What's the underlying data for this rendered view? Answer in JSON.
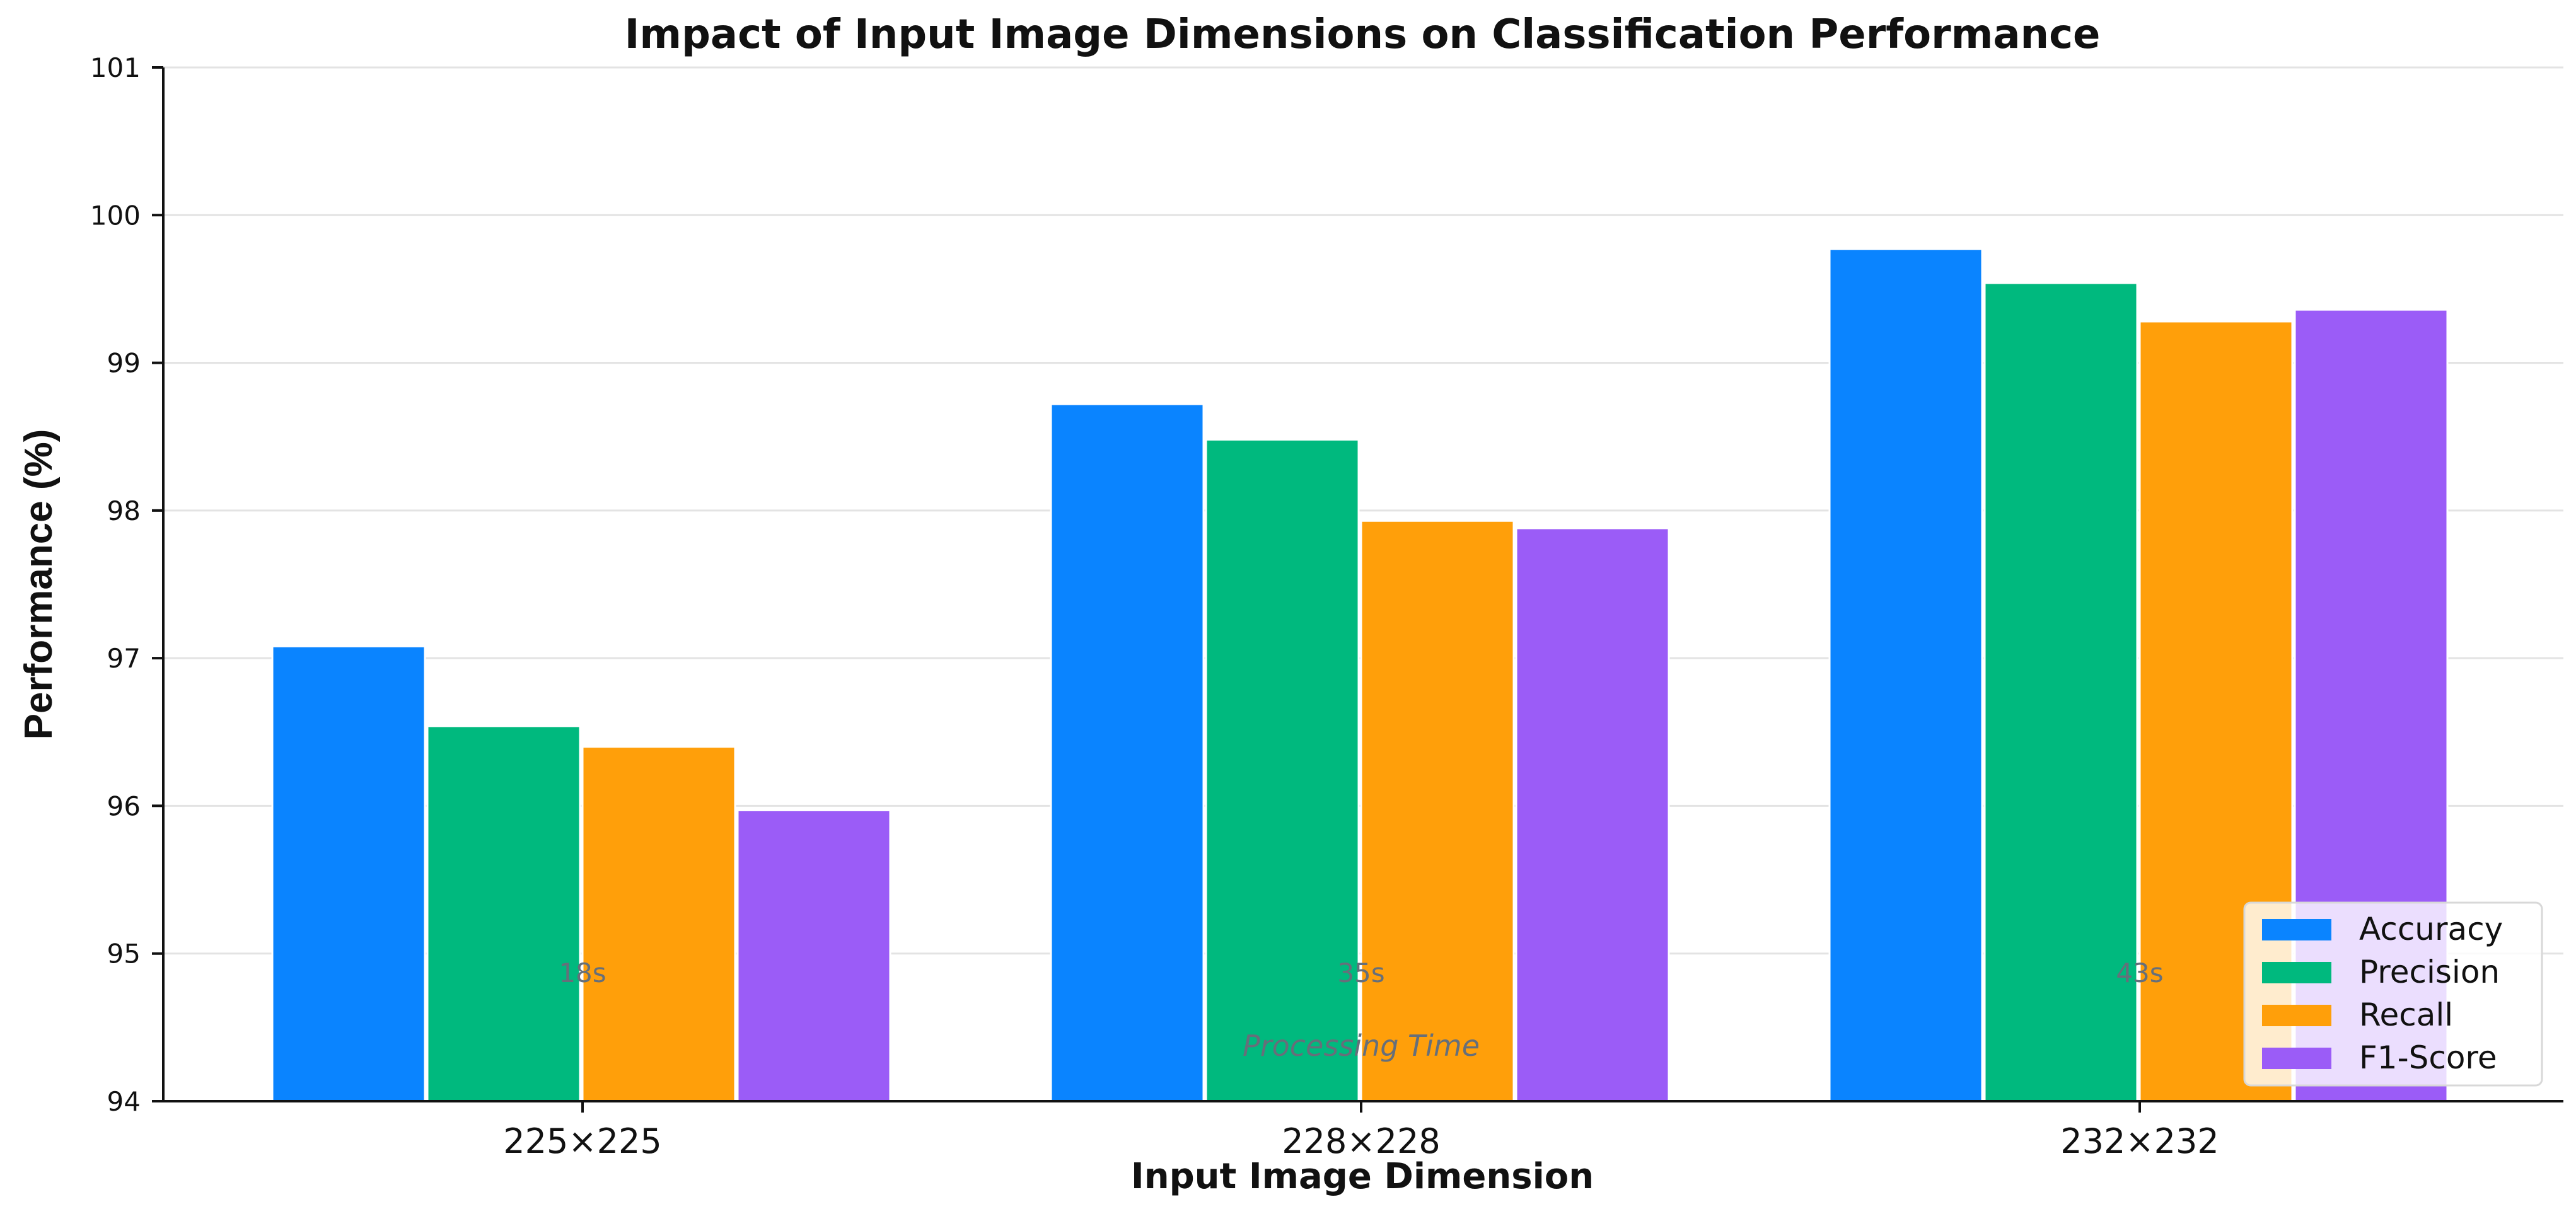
{
  "chart_data": {
    "type": "bar",
    "title": "Impact of Input Image Dimensions on Classification Performance",
    "xlabel": "Input Image Dimension",
    "ylabel": "Performance (%)",
    "ylim": [
      94,
      101
    ],
    "yticks": [
      94,
      95,
      96,
      97,
      98,
      99,
      100,
      101
    ],
    "grid": "horizontal",
    "legend_position": "bottom-right",
    "categories": [
      "225×225",
      "228×228",
      "232×232"
    ],
    "series": [
      {
        "name": "Accuracy",
        "color": "#0a84ff",
        "values": [
          97.08,
          98.72,
          99.77
        ]
      },
      {
        "name": "Precision",
        "color": "#00b97e",
        "values": [
          96.54,
          98.48,
          99.54
        ]
      },
      {
        "name": "Recall",
        "color": "#ff9f0a",
        "values": [
          96.4,
          97.93,
          99.28
        ]
      },
      {
        "name": "F1-Score",
        "color": "#9b5cf7",
        "values": [
          95.97,
          97.88,
          99.36
        ]
      }
    ],
    "annotations": {
      "processing_times": [
        "18s",
        "35s",
        "43s"
      ],
      "processing_time_label": "Processing Time"
    }
  }
}
